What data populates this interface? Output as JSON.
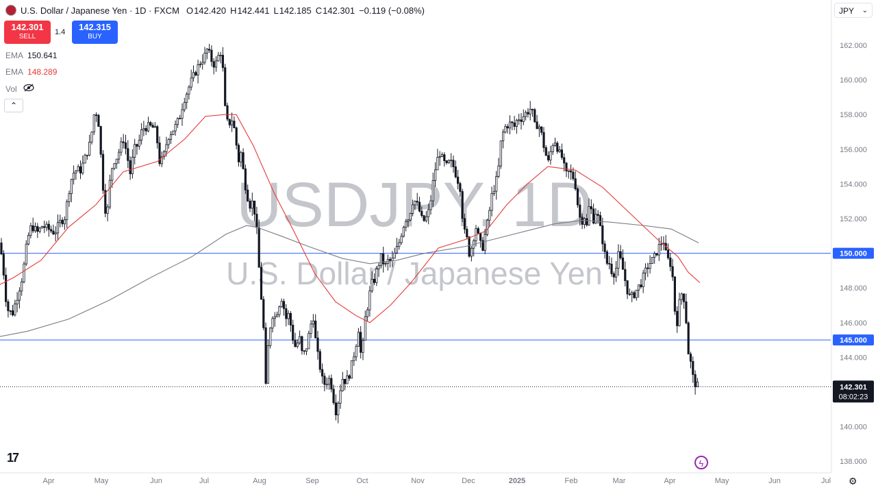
{
  "header": {
    "symbol_line": "U.S. Dollar / Japanese Yen · 1D · FXCM",
    "o_label": "O",
    "o_value": "142.420",
    "h_label": "H",
    "h_value": "142.441",
    "l_label": "L",
    "l_value": "142.185",
    "c_label": "C",
    "c_value": "142.301",
    "change": "−0.119 (−0.08%)"
  },
  "trade": {
    "sell_price": "142.301",
    "sell_label": "SELL",
    "buy_price": "142.315",
    "buy_label": "BUY",
    "spread": "1.4"
  },
  "indicators": [
    {
      "name": "EMA",
      "value": "150.641"
    },
    {
      "name": "EMA",
      "value": "148.289"
    },
    {
      "name": "Vol",
      "value": ""
    }
  ],
  "currency_selector": "JPY",
  "colors": {
    "up": "#131722",
    "down": "#131722",
    "ema_fast": "#e53935",
    "ema_slow": "#787b86",
    "hline": "#2962ff"
  },
  "chart_data": {
    "type": "candlestick",
    "watermark_symbol": "USDJPY, 1D",
    "watermark_name": "U.S. Dollar / Japanese Yen",
    "y_ticks": [
      "162.000",
      "160.000",
      "158.000",
      "156.000",
      "154.000",
      "152.000",
      "150.000",
      "148.000",
      "146.000",
      "144.000",
      "142.000",
      "140.000",
      "138.000"
    ],
    "x_ticks": [
      "Apr",
      "May",
      "Jun",
      "Jul",
      "Aug",
      "Sep",
      "Oct",
      "Nov",
      "Dec",
      "2025",
      "Feb",
      "Mar",
      "Apr",
      "May",
      "Jun",
      "Jul"
    ],
    "ylim": [
      137.2,
      164.6
    ],
    "horizontal_lines": [
      150.0,
      145.0
    ],
    "last_price": "142.301",
    "countdown": "08:02:23",
    "price_path": [
      [
        0,
        150.6
      ],
      [
        5,
        149.0
      ],
      [
        10,
        146.8
      ],
      [
        18,
        146.5
      ],
      [
        25,
        147.5
      ],
      [
        33,
        148.7
      ],
      [
        40,
        150.8
      ],
      [
        46,
        151.6
      ],
      [
        55,
        151.2
      ],
      [
        62,
        151.6
      ],
      [
        70,
        151.4
      ],
      [
        80,
        151.2
      ],
      [
        88,
        151.8
      ],
      [
        95,
        152.1
      ],
      [
        100,
        153.5
      ],
      [
        106,
        154.6
      ],
      [
        112,
        154.8
      ],
      [
        118,
        154.8
      ],
      [
        125,
        155.6
      ],
      [
        132,
        156.4
      ],
      [
        138,
        158.2
      ],
      [
        143,
        158.0
      ],
      [
        148,
        155.2
      ],
      [
        152,
        153.0
      ],
      [
        156,
        152.0
      ],
      [
        160,
        154.0
      ],
      [
        165,
        155.3
      ],
      [
        170,
        155.5
      ],
      [
        175,
        156.0
      ],
      [
        180,
        156.6
      ],
      [
        185,
        155.8
      ],
      [
        190,
        154.6
      ],
      [
        196,
        156.0
      ],
      [
        202,
        156.3
      ],
      [
        208,
        157.2
      ],
      [
        215,
        157.3
      ],
      [
        222,
        157.3
      ],
      [
        228,
        157.0
      ],
      [
        233,
        155.3
      ],
      [
        238,
        155.4
      ],
      [
        245,
        156.7
      ],
      [
        250,
        157.0
      ],
      [
        256,
        157.3
      ],
      [
        262,
        157.8
      ],
      [
        268,
        158.8
      ],
      [
        275,
        159.5
      ],
      [
        280,
        160.0
      ],
      [
        286,
        160.5
      ],
      [
        292,
        161.0
      ],
      [
        298,
        161.3
      ],
      [
        303,
        161.8
      ],
      [
        308,
        161.2
      ],
      [
        314,
        160.8
      ],
      [
        320,
        161.5
      ],
      [
        324,
        161.7
      ],
      [
        328,
        158.5
      ],
      [
        333,
        157.3
      ],
      [
        338,
        157.8
      ],
      [
        343,
        157.0
      ],
      [
        348,
        155.3
      ],
      [
        352,
        155.8
      ],
      [
        356,
        154.5
      ],
      [
        360,
        153.5
      ],
      [
        365,
        152.8
      ],
      [
        370,
        153.0
      ],
      [
        375,
        151.2
      ],
      [
        380,
        148.0
      ],
      [
        384,
        146.5
      ],
      [
        388,
        142.2
      ],
      [
        392,
        145.0
      ],
      [
        397,
        146.5
      ],
      [
        402,
        146.3
      ],
      [
        407,
        147.0
      ],
      [
        412,
        147.5
      ],
      [
        417,
        146.2
      ],
      [
        422,
        146.5
      ],
      [
        427,
        145.2
      ],
      [
        432,
        144.5
      ],
      [
        437,
        145.2
      ],
      [
        442,
        144.0
      ],
      [
        447,
        144.5
      ],
      [
        452,
        145.5
      ],
      [
        457,
        146.5
      ],
      [
        462,
        144.5
      ],
      [
        467,
        143.5
      ],
      [
        472,
        142.4
      ],
      [
        477,
        142.6
      ],
      [
        482,
        142.8
      ],
      [
        487,
        141.6
      ],
      [
        491,
        140.8
      ],
      [
        495,
        141.8
      ],
      [
        500,
        142.8
      ],
      [
        505,
        142.6
      ],
      [
        510,
        143.0
      ],
      [
        515,
        143.8
      ],
      [
        520,
        144.8
      ],
      [
        524,
        145.8
      ],
      [
        528,
        143.5
      ],
      [
        532,
        146.0
      ],
      [
        537,
        147.0
      ],
      [
        542,
        148.2
      ],
      [
        547,
        148.5
      ],
      [
        552,
        149.3
      ],
      [
        557,
        149.8
      ],
      [
        562,
        149.2
      ],
      [
        567,
        149.6
      ],
      [
        572,
        149.5
      ],
      [
        577,
        150.0
      ],
      [
        582,
        150.5
      ],
      [
        587,
        151.3
      ],
      [
        592,
        152.0
      ],
      [
        597,
        152.0
      ],
      [
        602,
        153.0
      ],
      [
        607,
        153.0
      ],
      [
        612,
        152.5
      ],
      [
        617,
        151.8
      ],
      [
        622,
        152.0
      ],
      [
        627,
        152.5
      ],
      [
        632,
        154.0
      ],
      [
        637,
        155.2
      ],
      [
        642,
        155.8
      ],
      [
        647,
        155.3
      ],
      [
        652,
        155.0
      ],
      [
        657,
        155.3
      ],
      [
        662,
        155.0
      ],
      [
        667,
        154.4
      ],
      [
        672,
        153.8
      ],
      [
        677,
        151.3
      ],
      [
        681,
        151.0
      ],
      [
        686,
        149.8
      ],
      [
        690,
        150.7
      ],
      [
        695,
        151.5
      ],
      [
        700,
        150.7
      ],
      [
        704,
        150.2
      ],
      [
        708,
        151.0
      ],
      [
        713,
        152.0
      ],
      [
        718,
        153.3
      ],
      [
        723,
        154.0
      ],
      [
        727,
        154.5
      ],
      [
        731,
        156.3
      ],
      [
        736,
        157.2
      ],
      [
        741,
        157.4
      ],
      [
        746,
        157.5
      ],
      [
        751,
        157.3
      ],
      [
        756,
        157.8
      ],
      [
        761,
        157.8
      ],
      [
        766,
        158.0
      ],
      [
        771,
        158.2
      ],
      [
        776,
        158.4
      ],
      [
        781,
        157.3
      ],
      [
        786,
        157.5
      ],
      [
        791,
        156.8
      ],
      [
        796,
        155.8
      ],
      [
        801,
        155.2
      ],
      [
        806,
        156.3
      ],
      [
        811,
        156.5
      ],
      [
        816,
        155.8
      ],
      [
        821,
        155.5
      ],
      [
        826,
        154.5
      ],
      [
        831,
        154.7
      ],
      [
        836,
        154.5
      ],
      [
        841,
        153.8
      ],
      [
        845,
        152.3
      ],
      [
        849,
        151.8
      ],
      [
        853,
        152.2
      ],
      [
        857,
        151.5
      ],
      [
        861,
        153.0
      ],
      [
        866,
        151.9
      ],
      [
        871,
        152.5
      ],
      [
        876,
        151.5
      ],
      [
        881,
        150.5
      ],
      [
        885,
        149.4
      ],
      [
        889,
        149.5
      ],
      [
        893,
        149.0
      ],
      [
        898,
        148.8
      ],
      [
        903,
        149.9
      ],
      [
        907,
        149.5
      ],
      [
        911,
        148.8
      ],
      [
        915,
        148.0
      ],
      [
        919,
        147.5
      ],
      [
        923,
        147.5
      ],
      [
        927,
        147.7
      ],
      [
        931,
        148.0
      ],
      [
        935,
        148.2
      ],
      [
        940,
        148.7
      ],
      [
        945,
        149.2
      ],
      [
        950,
        149.5
      ],
      [
        955,
        149.7
      ],
      [
        960,
        150.2
      ],
      [
        965,
        150.6
      ],
      [
        969,
        150.7
      ],
      [
        973,
        149.8
      ],
      [
        977,
        149.5
      ],
      [
        981,
        149.3
      ],
      [
        985,
        146.8
      ],
      [
        989,
        146.0
      ],
      [
        993,
        147.5
      ],
      [
        997,
        147.8
      ],
      [
        1001,
        146.8
      ],
      [
        1004,
        144.5
      ],
      [
        1008,
        143.8
      ],
      [
        1012,
        142.8
      ],
      [
        1016,
        142.4
      ],
      [
        1020,
        142.3
      ]
    ],
    "ema_fast_path": [
      [
        0,
        148.2
      ],
      [
        20,
        148.6
      ],
      [
        60,
        149.6
      ],
      [
        100,
        151.5
      ],
      [
        140,
        152.8
      ],
      [
        180,
        154.7
      ],
      [
        230,
        155.3
      ],
      [
        270,
        156.6
      ],
      [
        300,
        157.9
      ],
      [
        328,
        158.0
      ],
      [
        345,
        158.0
      ],
      [
        370,
        156.2
      ],
      [
        400,
        153.5
      ],
      [
        430,
        151.2
      ],
      [
        460,
        148.8
      ],
      [
        490,
        147.2
      ],
      [
        520,
        146.4
      ],
      [
        540,
        146.0
      ],
      [
        570,
        147.0
      ],
      [
        600,
        148.3
      ],
      [
        640,
        150.3
      ],
      [
        680,
        150.8
      ],
      [
        710,
        151.3
      ],
      [
        740,
        152.8
      ],
      [
        770,
        154.0
      ],
      [
        800,
        155.0
      ],
      [
        840,
        154.8
      ],
      [
        880,
        153.8
      ],
      [
        920,
        152.3
      ],
      [
        960,
        150.8
      ],
      [
        990,
        149.8
      ],
      [
        1005,
        148.9
      ],
      [
        1022,
        148.3
      ]
    ],
    "ema_slow_path": [
      [
        0,
        145.2
      ],
      [
        40,
        145.5
      ],
      [
        100,
        146.2
      ],
      [
        160,
        147.3
      ],
      [
        220,
        148.6
      ],
      [
        280,
        149.8
      ],
      [
        330,
        151.1
      ],
      [
        360,
        151.6
      ],
      [
        375,
        151.5
      ],
      [
        410,
        151.0
      ],
      [
        450,
        150.4
      ],
      [
        500,
        149.7
      ],
      [
        540,
        149.4
      ],
      [
        580,
        149.6
      ],
      [
        620,
        150.0
      ],
      [
        680,
        150.4
      ],
      [
        720,
        150.8
      ],
      [
        770,
        151.3
      ],
      [
        810,
        151.7
      ],
      [
        850,
        151.9
      ],
      [
        890,
        151.8
      ],
      [
        940,
        151.6
      ],
      [
        980,
        151.4
      ],
      [
        1020,
        150.6
      ]
    ]
  }
}
